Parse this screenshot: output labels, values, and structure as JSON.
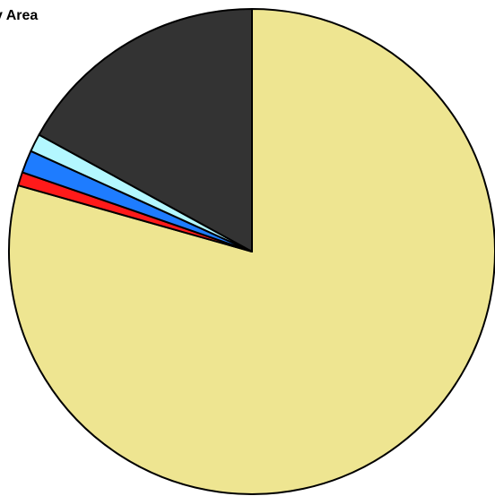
{
  "chart_data": {
    "type": "pie",
    "title": "y Area",
    "start_angle_deg": 0,
    "direction": "clockwise",
    "slices": [
      {
        "value": 79.4,
        "color": "#EEE591"
      },
      {
        "value": 0.9,
        "color": "#FF1A1A"
      },
      {
        "value": 1.5,
        "color": "#1E7CFF"
      },
      {
        "value": 1.2,
        "color": "#B3F7FF"
      },
      {
        "value": 17.0,
        "color": "#333333"
      }
    ]
  }
}
